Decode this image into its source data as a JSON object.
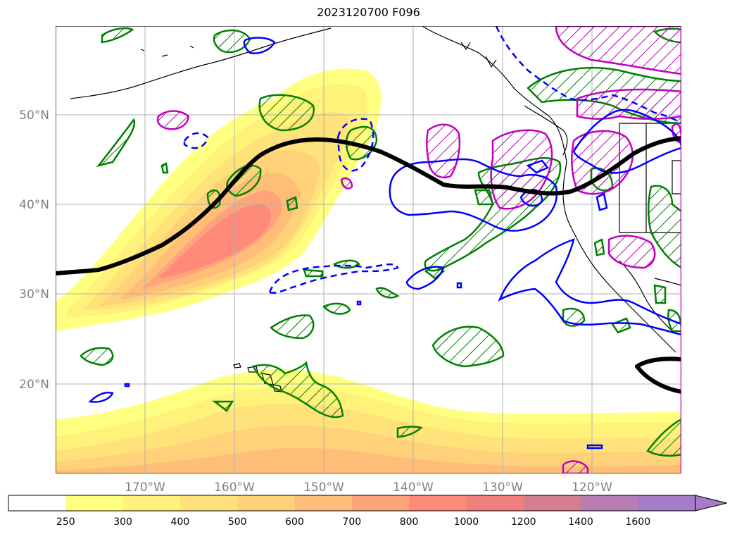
{
  "title": "2023120700 F096",
  "map": {
    "lat_labels": [
      {
        "lat": 50,
        "text": "50°N"
      },
      {
        "lat": 40,
        "text": "40°N"
      },
      {
        "lat": 30,
        "text": "30°N"
      },
      {
        "lat": 20,
        "text": "20°N"
      }
    ],
    "lon_labels": [
      {
        "lon": -170,
        "text": "170°W"
      },
      {
        "lon": -160,
        "text": "160°W"
      },
      {
        "lon": -150,
        "text": "150°W"
      },
      {
        "lon": -140,
        "text": "140°W"
      },
      {
        "lon": -130,
        "text": "130°W"
      },
      {
        "lon": -120,
        "text": "120°W"
      }
    ],
    "colors": {
      "jet_line": "#000000",
      "green_contour": "#008000",
      "blue_contour": "#0000ff",
      "magenta_contour": "#c000c0",
      "gridline": "#b0b0b0"
    }
  },
  "colorbar": {
    "levels": [
      {
        "label": "250",
        "color": "#ffffff"
      },
      {
        "label": "300",
        "color": "#ffff80"
      },
      {
        "label": "400",
        "color": "#fff27a"
      },
      {
        "label": "500",
        "color": "#ffe27a"
      },
      {
        "label": "600",
        "color": "#ffd27a"
      },
      {
        "label": "700",
        "color": "#ffbe78"
      },
      {
        "label": "800",
        "color": "#ffa47a"
      },
      {
        "label": "1000",
        "color": "#ff8a7a"
      },
      {
        "label": "1200",
        "color": "#f0807e"
      },
      {
        "label": "1400",
        "color": "#d47e8e"
      },
      {
        "label": "1600",
        "color": "#b67eb4"
      },
      {
        "label": "",
        "color": "#a67cc8"
      }
    ],
    "extend_color": "#a67cc8"
  }
}
